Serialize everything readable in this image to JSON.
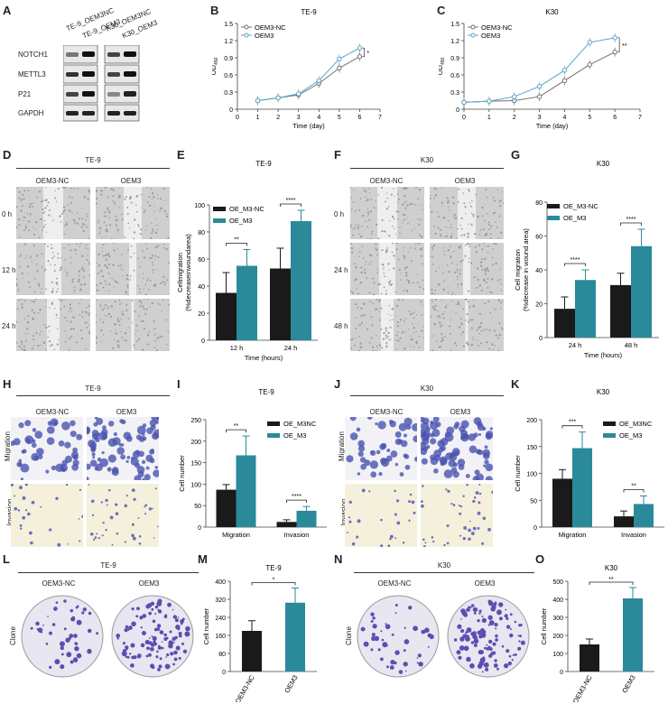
{
  "panel_letters": {
    "A": "A",
    "B": "B",
    "C": "C",
    "D": "D",
    "E": "E",
    "F": "F",
    "G": "G",
    "H": "H",
    "I": "I",
    "J": "J",
    "K": "K",
    "L": "L",
    "M": "M",
    "N": "N",
    "O": "O"
  },
  "western": {
    "lanes": [
      "TE-9_OEM3NC",
      "TE-9_OEM3",
      "K30_OEM3NC",
      "K30_OEM3"
    ],
    "rows": [
      "NOTCH1",
      "METTL3",
      "P21",
      "GAPDH"
    ]
  },
  "wound_te9": {
    "title": "TE-9",
    "cols": [
      "OEM3-NC",
      "OEM3"
    ],
    "rows": [
      "0 h",
      "12 h",
      "24 h"
    ]
  },
  "wound_k30": {
    "title": "K30",
    "cols": [
      "OEM3-NC",
      "OEM3"
    ],
    "rows": [
      "0 h",
      "24 h",
      "48 h"
    ]
  },
  "transwell_te9": {
    "title": "TE-9",
    "cols": [
      "OEM3-NC",
      "OEM3"
    ],
    "rows": [
      "Migration",
      "Invasion"
    ]
  },
  "transwell_k30": {
    "title": "K30",
    "cols": [
      "OEM3-NC",
      "OEM3"
    ],
    "rows": [
      "Migration",
      "Invasion"
    ]
  },
  "clone_te9": {
    "title": "TE-9",
    "cols": [
      "OEM3-NC",
      "OEM3"
    ],
    "row": "Clone"
  },
  "clone_k30": {
    "title": "K30",
    "cols": [
      "OEM3-NC",
      "OEM3"
    ],
    "row": "Clone"
  },
  "colors": {
    "dark": "#1a1a1a",
    "teal": "#2a8a9a",
    "line_nc": "#707070",
    "line_oem": "#5ba3c9",
    "wound_bg": "#d8d8d8",
    "transwell_blue": "#4a52b0",
    "invasion_bg": "#f5f0dc",
    "plate_bg": "#e8e6f0",
    "plate_spot": "#5a4fb0"
  },
  "chart_data": [
    {
      "panel": "B",
      "type": "line",
      "title": "TE-9",
      "xlabel": "Time (day)",
      "ylabel": "OD",
      "ylabel_sub": "450",
      "x": [
        1,
        2,
        3,
        4,
        5,
        6
      ],
      "xlim": [
        0,
        7
      ],
      "ylim": [
        0,
        1.5
      ],
      "yticks": [
        "0",
        "0.3",
        "0.6",
        "0.9",
        "1.2",
        "1.5"
      ],
      "xticks": [
        "0",
        "1",
        "2",
        "3",
        "4",
        "5",
        "6",
        "7"
      ],
      "series": [
        {
          "name": "OEM3-NC",
          "values": [
            0.15,
            0.2,
            0.25,
            0.45,
            0.72,
            0.92
          ]
        },
        {
          "name": "OEM3",
          "values": [
            0.15,
            0.2,
            0.27,
            0.5,
            0.88,
            1.07
          ]
        }
      ],
      "annotation": "*"
    },
    {
      "panel": "C",
      "type": "line",
      "title": "K30",
      "xlabel": "Time (day)",
      "ylabel": "OD",
      "ylabel_sub": "450",
      "x": [
        0,
        1,
        2,
        3,
        4,
        5,
        6
      ],
      "xlim": [
        0,
        7
      ],
      "ylim": [
        0,
        1.5
      ],
      "yticks": [
        "0",
        "0.3",
        "0.6",
        "0.9",
        "1.2",
        "1.5"
      ],
      "xticks": [
        "0",
        "1",
        "2",
        "3",
        "4",
        "5",
        "6",
        "7"
      ],
      "series": [
        {
          "name": "OEM3-NC",
          "values": [
            0.12,
            0.14,
            0.15,
            0.22,
            0.5,
            0.78,
            1.0
          ]
        },
        {
          "name": "OEM3",
          "values": [
            0.12,
            0.14,
            0.22,
            0.4,
            0.68,
            1.17,
            1.25
          ]
        }
      ],
      "annotation": "**"
    },
    {
      "panel": "E",
      "type": "bar",
      "title": "TE-9",
      "categories": [
        "12 h",
        "24 h"
      ],
      "xlabel": "Time (hours)",
      "ylabel": "Cellmigration",
      "ylabel2": "(%decreaseinwoundarea)",
      "ylim": [
        0,
        100
      ],
      "yticks": [
        "0",
        "20",
        "40",
        "60",
        "80",
        "100"
      ],
      "series": [
        {
          "name": "OE_M3-NC",
          "values": [
            35,
            53
          ]
        },
        {
          "name": "OE_M3",
          "values": [
            55,
            88
          ]
        }
      ],
      "errors": [
        [
          15,
          15
        ],
        [
          12,
          8
        ]
      ],
      "annotations": [
        "**",
        "****"
      ]
    },
    {
      "panel": "G",
      "type": "bar",
      "title": "K30",
      "categories": [
        "24 h",
        "48 h"
      ],
      "xlabel": "Time (hours)",
      "ylabel": "Cell migration",
      "ylabel2": "(%decrease in wound area)",
      "ylim": [
        0,
        80
      ],
      "yticks": [
        "0",
        "20",
        "40",
        "60",
        "80"
      ],
      "series": [
        {
          "name": "OE_M3-NC",
          "values": [
            17,
            31
          ]
        },
        {
          "name": "OE_M3",
          "values": [
            34,
            54
          ]
        }
      ],
      "errors": [
        [
          7,
          7
        ],
        [
          6,
          10
        ]
      ],
      "annotations": [
        "****",
        "****"
      ]
    },
    {
      "panel": "I",
      "type": "bar",
      "title": "TE-9",
      "categories": [
        "Migration",
        "Invasion"
      ],
      "ylabel": "Cell number",
      "ylim": [
        0,
        250
      ],
      "yticks": [
        "0",
        "50",
        "100",
        "150",
        "200",
        "250"
      ],
      "series": [
        {
          "name": "OE_M3NC",
          "values": [
            87,
            12
          ]
        },
        {
          "name": "OE_M3",
          "values": [
            167,
            38
          ]
        }
      ],
      "errors": [
        [
          12,
          5
        ],
        [
          45,
          10
        ]
      ],
      "annotations": [
        "**",
        "****"
      ]
    },
    {
      "panel": "K",
      "type": "bar",
      "title": "K30",
      "categories": [
        "Migration",
        "Invasion"
      ],
      "ylabel": "Cell number",
      "ylim": [
        0,
        200
      ],
      "yticks": [
        "0",
        "50",
        "100",
        "150",
        "200"
      ],
      "series": [
        {
          "name": "OE_M3NC",
          "values": [
            90,
            20
          ]
        },
        {
          "name": "OE_M3",
          "values": [
            147,
            43
          ]
        }
      ],
      "errors": [
        [
          17,
          10
        ],
        [
          30,
          15
        ]
      ],
      "annotations": [
        "***",
        "**"
      ]
    },
    {
      "panel": "M",
      "type": "bar",
      "title": "TE-9",
      "categories": [
        "OEM3-NC",
        "OEM3"
      ],
      "ylabel": "Cell number",
      "ylim": [
        0,
        400
      ],
      "yticks": [
        "0",
        "80",
        "160",
        "240",
        "320",
        "400"
      ],
      "series": [
        {
          "name": "",
          "values": [
            180,
            305
          ]
        }
      ],
      "errors": [
        45,
        65
      ],
      "annotation": "*"
    },
    {
      "panel": "O",
      "type": "bar",
      "title": "K30",
      "categories": [
        "OEM3-NC",
        "OEM3"
      ],
      "ylabel": "Cell number",
      "ylim": [
        0,
        500
      ],
      "yticks": [
        "0",
        "100",
        "200",
        "300",
        "400",
        "500"
      ],
      "series": [
        {
          "name": "",
          "values": [
            150,
            405
          ]
        }
      ],
      "errors": [
        30,
        60
      ],
      "annotation": "**"
    }
  ]
}
